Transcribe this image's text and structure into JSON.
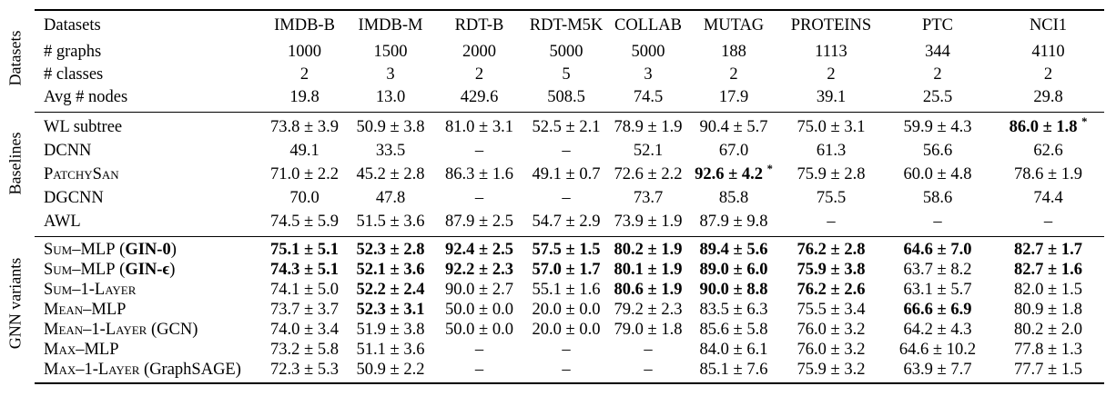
{
  "table": {
    "columns": [
      "Datasets",
      "IMDB-B",
      "IMDB-M",
      "RDT-B",
      "RDT-M5K",
      "COLLAB",
      "MUTAG",
      "PROTEINS",
      "PTC",
      "NCI1"
    ],
    "sections": [
      {
        "group": "Datasets",
        "rows": [
          {
            "label": "# graphs",
            "cells": [
              "1000",
              "1500",
              "2000",
              "5000",
              "5000",
              "188",
              "1113",
              "344",
              "4110"
            ]
          },
          {
            "label": "# classes",
            "cells": [
              "2",
              "3",
              "2",
              "5",
              "3",
              "2",
              "2",
              "2",
              "2"
            ]
          },
          {
            "label": "Avg # nodes",
            "cells": [
              "19.8",
              "13.0",
              "429.6",
              "508.5",
              "74.5",
              "17.9",
              "39.1",
              "25.5",
              "29.8"
            ]
          }
        ]
      },
      {
        "group": "Baselines",
        "rows": [
          {
            "label": "WL subtree",
            "cells": [
              "73.8 ± 3.9",
              "50.9 ± 3.8",
              "81.0 ± 3.1",
              "52.5 ± 2.1",
              "78.9 ± 1.9",
              "90.4 ± 5.7",
              "75.0 ± 3.1",
              "59.9 ± 4.3",
              "86.0 ± 1.8"
            ],
            "bold": [
              8
            ],
            "star": [
              8
            ]
          },
          {
            "label": "DCNN",
            "cells": [
              "49.1",
              "33.5",
              "–",
              "–",
              "52.1",
              "67.0",
              "61.3",
              "56.6",
              "62.6"
            ]
          },
          {
            "label": "PatchySan",
            "sc": true,
            "cells": [
              "71.0 ± 2.2",
              "45.2 ± 2.8",
              "86.3 ± 1.6",
              "49.1 ± 0.7",
              "72.6 ± 2.2",
              "92.6 ± 4.2",
              "75.9 ± 2.8",
              "60.0 ± 4.8",
              "78.6 ± 1.9"
            ],
            "bold": [
              5
            ],
            "star": [
              5
            ]
          },
          {
            "label": "DGCNN",
            "cells": [
              "70.0",
              "47.8",
              "–",
              "–",
              "73.7",
              "85.8",
              "75.5",
              "58.6",
              "74.4"
            ]
          },
          {
            "label": "AWL",
            "cells": [
              "74.5 ± 5.9",
              "51.5 ± 3.6",
              "87.9 ± 2.5",
              "54.7 ± 2.9",
              "73.9 ± 1.9",
              "87.9 ± 9.8",
              "–",
              "–",
              "–"
            ]
          }
        ]
      },
      {
        "group": "GNN variants",
        "rows": [
          {
            "label": "Sum–MLP",
            "sc": true,
            "paren": "GIN-0",
            "paren_bold": true,
            "cells": [
              "75.1 ± 5.1",
              "52.3 ± 2.8",
              "92.4 ± 2.5",
              "57.5 ± 1.5",
              "80.2 ± 1.9",
              "89.4 ± 5.6",
              "76.2 ± 2.8",
              "64.6 ± 7.0",
              "82.7 ± 1.7"
            ],
            "bold": [
              0,
              1,
              2,
              3,
              4,
              5,
              6,
              7,
              8
            ]
          },
          {
            "label": "Sum–MLP",
            "sc": true,
            "paren": "GIN-ϵ",
            "paren_bold": true,
            "cells": [
              "74.3 ± 5.1",
              "52.1 ± 3.6",
              "92.2 ± 2.3",
              "57.0 ± 1.7",
              "80.1 ± 1.9",
              "89.0 ± 6.0",
              "75.9 ± 3.8",
              "63.7 ± 8.2",
              "82.7 ± 1.6"
            ],
            "bold": [
              0,
              1,
              2,
              3,
              4,
              5,
              6,
              8
            ]
          },
          {
            "label": "Sum–1-Layer",
            "sc": true,
            "cells": [
              "74.1 ± 5.0",
              "52.2 ± 2.4",
              "90.0 ± 2.7",
              "55.1 ± 1.6",
              "80.6 ± 1.9",
              "90.0 ± 8.8",
              "76.2 ± 2.6",
              "63.1 ± 5.7",
              "82.0 ± 1.5"
            ],
            "bold": [
              1,
              4,
              5,
              6
            ]
          },
          {
            "label": "Mean–MLP",
            "sc": true,
            "cells": [
              "73.7 ± 3.7",
              "52.3 ± 3.1",
              "50.0 ± 0.0",
              "20.0 ± 0.0",
              "79.2 ± 2.3",
              "83.5 ± 6.3",
              "75.5 ± 3.4",
              "66.6 ± 6.9",
              "80.9 ± 1.8"
            ],
            "bold": [
              1,
              7
            ]
          },
          {
            "label": "Mean–1-Layer",
            "sc": true,
            "paren": "GCN",
            "cells": [
              "74.0 ± 3.4",
              "51.9 ± 3.8",
              "50.0 ± 0.0",
              "20.0 ± 0.0",
              "79.0 ± 1.8",
              "85.6 ± 5.8",
              "76.0 ± 3.2",
              "64.2 ± 4.3",
              "80.2 ± 2.0"
            ]
          },
          {
            "label": "Max–MLP",
            "sc": true,
            "cells": [
              "73.2 ± 5.8",
              "51.1 ± 3.6",
              "–",
              "–",
              "–",
              "84.0 ± 6.1",
              "76.0 ± 3.2",
              "64.6 ± 10.2",
              "77.8 ± 1.3"
            ]
          },
          {
            "label": "Max–1-Layer",
            "sc": true,
            "paren": "GraphSAGE",
            "cells": [
              "72.3 ± 5.3",
              "50.9 ± 2.2",
              "–",
              "–",
              "–",
              "85.1 ± 7.6",
              "75.9 ± 3.2",
              "63.9 ± 7.7",
              "77.7 ± 1.5"
            ]
          }
        ]
      }
    ]
  }
}
